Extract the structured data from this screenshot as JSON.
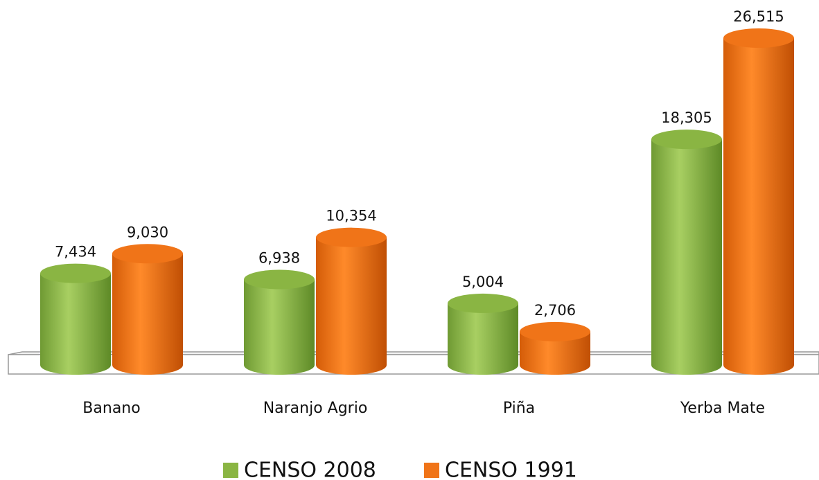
{
  "chart_data": {
    "type": "bar",
    "categories": [
      "Banano",
      "Naranjo Agrio",
      "Piña",
      "Yerba Mate"
    ],
    "series": [
      {
        "name": "CENSO 2008",
        "color": "#8ab543",
        "values": [
          7434,
          6938,
          5004,
          18305
        ],
        "value_labels": [
          "7,434",
          "6,938",
          "5,004",
          "18,305"
        ]
      },
      {
        "name": "CENSO 1991",
        "color": "#f07418",
        "values": [
          9030,
          10354,
          2706,
          26515
        ],
        "value_labels": [
          "9,030",
          "10,354",
          "2,706",
          "26,515"
        ]
      }
    ]
  }
}
